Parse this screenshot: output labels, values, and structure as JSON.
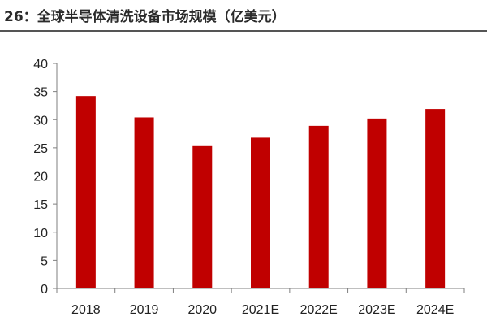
{
  "title": "26：全球半导体清洗设备市场规模（亿美元）",
  "colors": {
    "bar": "#c00000",
    "axis": "#7f7f7f",
    "title_rule": "#555555"
  },
  "chart_data": {
    "type": "bar",
    "title": "26：全球半导体清洗设备市场规模（亿美元）",
    "categories": [
      "2018",
      "2019",
      "2020",
      "2021E",
      "2022E",
      "2023E",
      "2024E"
    ],
    "values": [
      34.2,
      30.4,
      25.3,
      26.8,
      28.9,
      30.2,
      31.9
    ],
    "ylim": [
      0,
      40
    ],
    "yticks": [
      "0",
      "5",
      "10",
      "15",
      "20",
      "25",
      "30",
      "35",
      "40"
    ],
    "xlabel": "",
    "ylabel": "",
    "grid": false,
    "legend": "none"
  }
}
